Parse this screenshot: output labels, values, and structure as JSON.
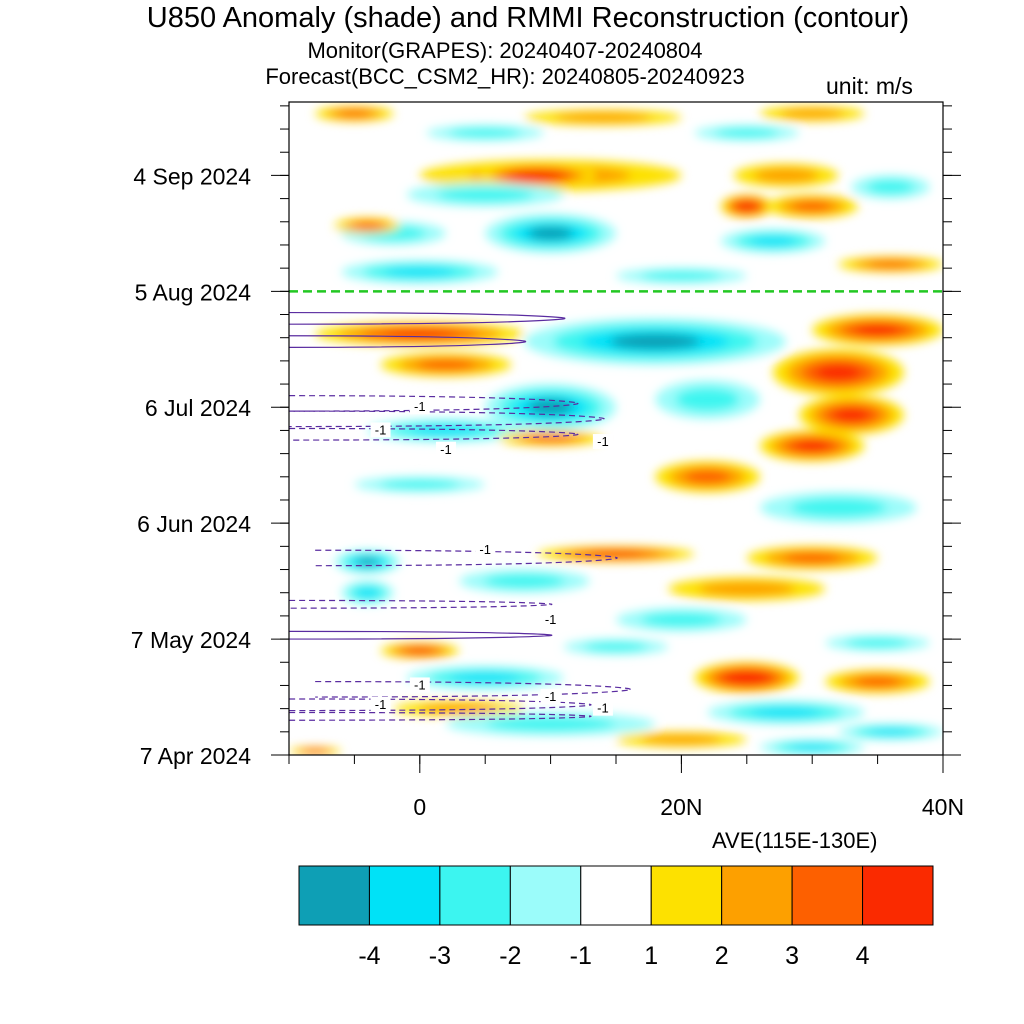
{
  "title": "U850 Anomaly (shade) and RMMI Reconstruction (contour)",
  "subtitle_monitor": "Monitor(GRAPES): 20240407-20240804",
  "subtitle_forecast": "Forecast(BCC_CSM2_HR): 20240805-20240923",
  "unit": "unit: m/s",
  "longitude_note": "AVE(115E-130E)",
  "chart_data": {
    "type": "heatmap",
    "x_axis": {
      "range": [
        -10,
        40
      ],
      "ticks": [
        0,
        20,
        40
      ],
      "tick_labels": [
        "0",
        "20N",
        "40N"
      ]
    },
    "y_axis": {
      "range_dates": [
        "2024-04-07",
        "2024-09-23"
      ],
      "ticks": [
        "2024-04-07",
        "2024-05-07",
        "2024-06-06",
        "2024-07-06",
        "2024-08-05",
        "2024-09-04"
      ],
      "tick_labels": [
        "7 Apr 2024",
        "7 May 2024",
        "6 Jun 2024",
        "6 Jul 2024",
        "5 Aug 2024",
        "4 Sep 2024"
      ]
    },
    "forecast_start_line": {
      "date": "2024-08-05",
      "color": "#22c822",
      "style": "dashed"
    },
    "colorbar": {
      "levels": [
        -4,
        -3,
        -2,
        -1,
        1,
        2,
        3,
        4
      ],
      "level_labels": [
        "-4",
        "-3",
        "-2",
        "-1",
        "1",
        "2",
        "3",
        "4"
      ],
      "colors": [
        "#0e9fb5",
        "#00e2f7",
        "#3cf5f0",
        "#9bfcfa",
        "#ffffff",
        "#fde100",
        "#fda000",
        "#fd6000",
        "#fa2a00"
      ]
    },
    "contour_label": "-1",
    "contour_color": "#5a2ca0",
    "anomaly_blobs": [
      {
        "lat": -5,
        "lat_w": 6,
        "date": "2024-09-20",
        "days_w": 2,
        "v": 3
      },
      {
        "lat": 14,
        "lat_w": 12,
        "date": "2024-09-19",
        "days_w": 2,
        "v": 2
      },
      {
        "lat": 30,
        "lat_w": 8,
        "date": "2024-09-20",
        "days_w": 2,
        "v": 2
      },
      {
        "lat": 5,
        "lat_w": 9,
        "date": "2024-09-15",
        "days_w": 2,
        "v": -2
      },
      {
        "lat": 25,
        "lat_w": 8,
        "date": "2024-09-15",
        "days_w": 2,
        "v": -2
      },
      {
        "lat": 10,
        "lat_w": 20,
        "date": "2024-09-04",
        "days_w": 4,
        "v": 2
      },
      {
        "lat": 9,
        "lat_w": 9,
        "date": "2024-09-04",
        "days_w": 3,
        "v": 5
      },
      {
        "lat": 28,
        "lat_w": 8,
        "date": "2024-09-04",
        "days_w": 3,
        "v": 2
      },
      {
        "lat": 36,
        "lat_w": 6,
        "date": "2024-09-01",
        "days_w": 3,
        "v": -2
      },
      {
        "lat": 5,
        "lat_w": 12,
        "date": "2024-08-30",
        "days_w": 3,
        "v": -2
      },
      {
        "lat": 25,
        "lat_w": 4,
        "date": "2024-08-27",
        "days_w": 3,
        "v": 5
      },
      {
        "lat": 30,
        "lat_w": 7,
        "date": "2024-08-27",
        "days_w": 3,
        "v": 3
      },
      {
        "lat": 10,
        "lat_w": 10,
        "date": "2024-08-20",
        "days_w": 5,
        "v": -4
      },
      {
        "lat": -2,
        "lat_w": 8,
        "date": "2024-08-20",
        "days_w": 3,
        "v": -2
      },
      {
        "lat": 27,
        "lat_w": 8,
        "date": "2024-08-18",
        "days_w": 3,
        "v": -3
      },
      {
        "lat": -4,
        "lat_w": 5,
        "date": "2024-08-22",
        "days_w": 2,
        "v": 3
      },
      {
        "lat": 36,
        "lat_w": 8,
        "date": "2024-08-12",
        "days_w": 2,
        "v": 3
      },
      {
        "lat": 0,
        "lat_w": 12,
        "date": "2024-08-10",
        "days_w": 3,
        "v": -3
      },
      {
        "lat": 20,
        "lat_w": 10,
        "date": "2024-08-09",
        "days_w": 2,
        "v": -2
      },
      {
        "lat": 18,
        "lat_w": 20,
        "date": "2024-07-23",
        "days_w": 6,
        "v": -4
      },
      {
        "lat": 0,
        "lat_w": 16,
        "date": "2024-07-25",
        "days_w": 3,
        "v": 4
      },
      {
        "lat": 35,
        "lat_w": 10,
        "date": "2024-07-26",
        "days_w": 4,
        "v": 4
      },
      {
        "lat": 32,
        "lat_w": 10,
        "date": "2024-07-15",
        "days_w": 6,
        "v": 4
      },
      {
        "lat": 2,
        "lat_w": 10,
        "date": "2024-07-17",
        "days_w": 3,
        "v": 3
      },
      {
        "lat": 10,
        "lat_w": 10,
        "date": "2024-07-06",
        "days_w": 6,
        "v": -4
      },
      {
        "lat": 22,
        "lat_w": 8,
        "date": "2024-07-08",
        "days_w": 5,
        "v": -2
      },
      {
        "lat": 33,
        "lat_w": 8,
        "date": "2024-07-04",
        "days_w": 5,
        "v": 4
      },
      {
        "lat": 30,
        "lat_w": 8,
        "date": "2024-06-26",
        "days_w": 4,
        "v": 4
      },
      {
        "lat": 2,
        "lat_w": 12,
        "date": "2024-06-30",
        "days_w": 3,
        "v": -3
      },
      {
        "lat": 10,
        "lat_w": 8,
        "date": "2024-06-28",
        "days_w": 2,
        "v": 3
      },
      {
        "lat": 22,
        "lat_w": 8,
        "date": "2024-06-18",
        "days_w": 4,
        "v": 3
      },
      {
        "lat": 0,
        "lat_w": 10,
        "date": "2024-06-16",
        "days_w": 2,
        "v": -2
      },
      {
        "lat": 32,
        "lat_w": 12,
        "date": "2024-06-10",
        "days_w": 4,
        "v": -2
      },
      {
        "lat": 15,
        "lat_w": 12,
        "date": "2024-05-29",
        "days_w": 2,
        "v": 4
      },
      {
        "lat": 30,
        "lat_w": 10,
        "date": "2024-05-28",
        "days_w": 3,
        "v": 3
      },
      {
        "lat": -4,
        "lat_w": 5,
        "date": "2024-05-27",
        "days_w": 3,
        "v": -4
      },
      {
        "lat": 8,
        "lat_w": 10,
        "date": "2024-05-22",
        "days_w": 3,
        "v": -2
      },
      {
        "lat": 25,
        "lat_w": 12,
        "date": "2024-05-20",
        "days_w": 3,
        "v": 2
      },
      {
        "lat": -4,
        "lat_w": 4,
        "date": "2024-05-19",
        "days_w": 3,
        "v": -3
      },
      {
        "lat": 20,
        "lat_w": 10,
        "date": "2024-05-12",
        "days_w": 3,
        "v": -2
      },
      {
        "lat": 0,
        "lat_w": 6,
        "date": "2024-05-04",
        "days_w": 2,
        "v": 4
      },
      {
        "lat": 15,
        "lat_w": 8,
        "date": "2024-05-05",
        "days_w": 2,
        "v": -2
      },
      {
        "lat": 35,
        "lat_w": 8,
        "date": "2024-05-06",
        "days_w": 2,
        "v": -2
      },
      {
        "lat": 25,
        "lat_w": 8,
        "date": "2024-04-27",
        "days_w": 4,
        "v": 5
      },
      {
        "lat": 35,
        "lat_w": 8,
        "date": "2024-04-26",
        "days_w": 3,
        "v": 3
      },
      {
        "lat": 5,
        "lat_w": 12,
        "date": "2024-04-27",
        "days_w": 3,
        "v": -3
      },
      {
        "lat": 3,
        "lat_w": 10,
        "date": "2024-04-19",
        "days_w": 2,
        "v": 2
      },
      {
        "lat": 28,
        "lat_w": 12,
        "date": "2024-04-18",
        "days_w": 3,
        "v": -3
      },
      {
        "lat": 20,
        "lat_w": 10,
        "date": "2024-04-11",
        "days_w": 2,
        "v": 2
      },
      {
        "lat": 36,
        "lat_w": 8,
        "date": "2024-04-13",
        "days_w": 2,
        "v": -3
      },
      {
        "lat": 30,
        "lat_w": 8,
        "date": "2024-04-09",
        "days_w": 2,
        "v": -3
      },
      {
        "lat": -8,
        "lat_w": 4,
        "date": "2024-04-08",
        "days_w": 1,
        "v": 4
      },
      {
        "lat": 10,
        "lat_w": 16,
        "date": "2024-04-15",
        "days_w": 3,
        "v": -2
      }
    ],
    "contours": [
      {
        "lat0": -10,
        "lat1": 12,
        "date": "2024-07-07",
        "days_w": 2,
        "dashed": true
      },
      {
        "lat0": -10,
        "lat1": 14,
        "date": "2024-07-03",
        "days_w": 2,
        "dashed": true
      },
      {
        "lat0": -10,
        "lat1": 12,
        "date": "2024-06-29",
        "days_w": 1.5,
        "dashed": true
      },
      {
        "lat0": -10,
        "lat1": 11,
        "date": "2024-07-29",
        "days_w": 1.5,
        "dashed": false
      },
      {
        "lat0": -10,
        "lat1": 8,
        "date": "2024-07-23",
        "days_w": 1.5,
        "dashed": false
      },
      {
        "lat0": -8,
        "lat1": 15,
        "date": "2024-05-28",
        "days_w": 2,
        "dashed": true
      },
      {
        "lat0": -10,
        "lat1": 10,
        "date": "2024-05-16",
        "days_w": 1,
        "dashed": true
      },
      {
        "lat0": -10,
        "lat1": 10,
        "date": "2024-05-08",
        "days_w": 1,
        "dashed": false
      },
      {
        "lat0": -8,
        "lat1": 16,
        "date": "2024-04-24",
        "days_w": 2,
        "dashed": true
      },
      {
        "lat0": -10,
        "lat1": 13,
        "date": "2024-04-20",
        "days_w": 1.5,
        "dashed": true
      },
      {
        "lat0": -10,
        "lat1": 13,
        "date": "2024-04-17",
        "days_w": 1,
        "dashed": true
      }
    ],
    "contour_labels": [
      {
        "lat": 0,
        "date": "2024-07-06"
      },
      {
        "lat": -3,
        "date": "2024-06-30"
      },
      {
        "lat": 2,
        "date": "2024-06-25"
      },
      {
        "lat": 14,
        "date": "2024-06-27"
      },
      {
        "lat": 5,
        "date": "2024-05-30"
      },
      {
        "lat": 10,
        "date": "2024-05-12"
      },
      {
        "lat": 0,
        "date": "2024-04-25"
      },
      {
        "lat": 10,
        "date": "2024-04-22"
      },
      {
        "lat": -3,
        "date": "2024-04-20"
      },
      {
        "lat": 14,
        "date": "2024-04-19"
      }
    ]
  }
}
